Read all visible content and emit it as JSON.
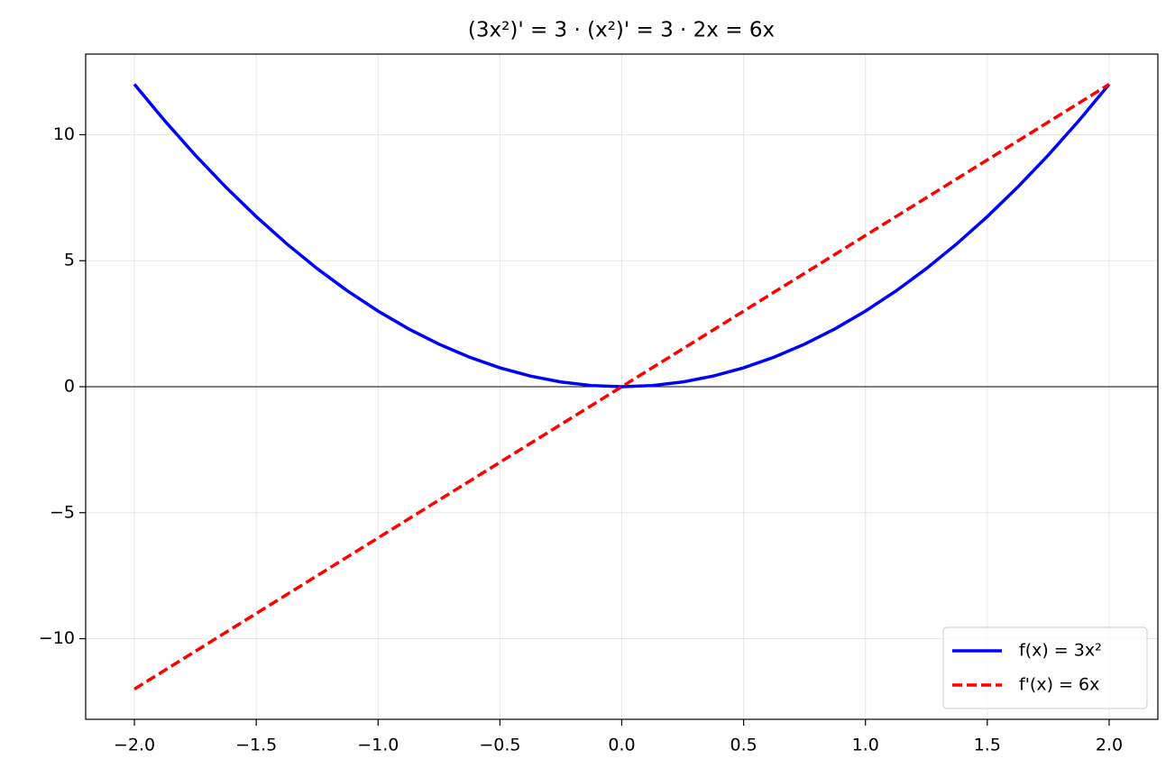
{
  "chart_data": {
    "type": "line",
    "title": "(3x²)' = 3 · (x²)' = 3 · 2x = 6x",
    "x": [
      -2,
      -1.875,
      -1.75,
      -1.625,
      -1.5,
      -1.375,
      -1.25,
      -1.125,
      -1,
      -0.875,
      -0.75,
      -0.625,
      -0.5,
      -0.375,
      -0.25,
      -0.125,
      0,
      0.125,
      0.25,
      0.375,
      0.5,
      0.625,
      0.75,
      0.875,
      1,
      1.125,
      1.25,
      1.375,
      1.5,
      1.625,
      1.75,
      1.875,
      2
    ],
    "series": [
      {
        "name": "f(x) = 3x²",
        "color": "#0000ff",
        "linestyle": "solid",
        "values": [
          12,
          10.546875,
          9.1875,
          7.921875,
          6.75,
          5.671875,
          4.6875,
          3.796875,
          3,
          2.296875,
          1.6875,
          1.171875,
          0.75,
          0.421875,
          0.1875,
          0.046875,
          0,
          0.046875,
          0.1875,
          0.421875,
          0.75,
          1.171875,
          1.6875,
          2.296875,
          3,
          3.796875,
          4.6875,
          5.671875,
          6.75,
          7.921875,
          9.1875,
          10.546875,
          12
        ]
      },
      {
        "name": "f'(x) = 6x",
        "color": "#ff0000",
        "linestyle": "dashed",
        "values": [
          -12,
          -11.25,
          -10.5,
          -9.75,
          -9,
          -8.25,
          -7.5,
          -6.75,
          -6,
          -5.25,
          -4.5,
          -3.75,
          -3,
          -2.25,
          -1.5,
          -0.75,
          0,
          0.75,
          1.5,
          2.25,
          3,
          3.75,
          4.5,
          5.25,
          6,
          6.75,
          7.5,
          8.25,
          9,
          9.75,
          10.5,
          11.25,
          12
        ]
      }
    ],
    "xlim": [
      -2.2,
      2.2
    ],
    "ylim": [
      -13.2,
      13.2
    ],
    "xticks": [
      {
        "value": -2,
        "label": "−2.0"
      },
      {
        "value": -1.5,
        "label": "−1.5"
      },
      {
        "value": -1,
        "label": "−1.0"
      },
      {
        "value": -0.5,
        "label": "−0.5"
      },
      {
        "value": 0,
        "label": "0.0"
      },
      0.5,
      {
        "value": 1,
        "label": "1.0"
      },
      1.5,
      {
        "value": 2,
        "label": "2.0"
      }
    ],
    "yticks": [
      {
        "value": -10,
        "label": "−10"
      },
      {
        "value": -5,
        "label": "−5"
      },
      0,
      5,
      10
    ],
    "grid": true,
    "zero_line": true,
    "legend": "lower right"
  }
}
